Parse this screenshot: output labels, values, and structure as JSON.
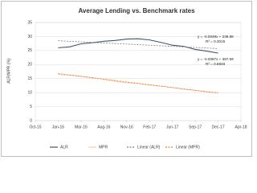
{
  "chart_data": {
    "type": "line",
    "title": "Average Lending vs. Benchmark rates",
    "y_label": "ALR/MPR (%)",
    "xlim": [
      0,
      9
    ],
    "xticks": [
      {
        "value": 0,
        "label": "Oct-15"
      },
      {
        "value": 1,
        "label": "Jan-16"
      },
      {
        "value": 2,
        "label": "Mar-16"
      },
      {
        "value": 3,
        "label": "Aug-16"
      },
      {
        "value": 4,
        "label": "Nov-16"
      },
      {
        "value": 5,
        "label": "Feb-17"
      },
      {
        "value": 6,
        "label": "Jun-17"
      },
      {
        "value": 7,
        "label": "Sep-17"
      },
      {
        "value": 8,
        "label": "Dec-17"
      },
      {
        "value": 9,
        "label": "Apr-18"
      }
    ],
    "ylim": [
      0,
      35
    ],
    "yticks": [
      0,
      5,
      10,
      15,
      20,
      25,
      30,
      35
    ],
    "grid": true,
    "series": [
      {
        "name": "ALR",
        "color": "#44546a",
        "dash": false,
        "x": [
          1,
          1.5,
          2,
          2.5,
          3,
          3.5,
          4,
          4.5,
          5,
          5.5,
          6,
          6.5,
          7,
          7.5,
          8
        ],
        "values": [
          26.0,
          26.3,
          27.4,
          27.8,
          28.3,
          28.6,
          29.1,
          29.2,
          28.8,
          27.9,
          26.9,
          26.5,
          25.4,
          24.8,
          24.1
        ]
      },
      {
        "name": "MPR",
        "color": "#f8cbad",
        "dash": false,
        "x": [
          1,
          1.5,
          2,
          2.5,
          3,
          3.5,
          4,
          4.5,
          5,
          5.5,
          6,
          6.5,
          7,
          7.5,
          8
        ],
        "values": [
          16.5,
          16.2,
          15.8,
          15.3,
          14.8,
          14.0,
          13.5,
          13.2,
          12.7,
          12.3,
          11.8,
          11.2,
          10.8,
          10.3,
          10.0
        ]
      },
      {
        "name": "Linear (ALR)",
        "color": "#7f7f7f",
        "dash": true,
        "x": [
          1,
          8
        ],
        "values": [
          28.5,
          25.7
        ]
      },
      {
        "name": "Linear (MPR)",
        "color": "#ed7d31",
        "dash": true,
        "x": [
          1,
          8
        ],
        "values": [
          16.8,
          9.8
        ]
      }
    ],
    "annotations": [
      "y = -0.0049x + 239.88",
      "R² = 0.3015",
      "y = -0.0087x + 387.59",
      "R² = 0.8848"
    ]
  }
}
